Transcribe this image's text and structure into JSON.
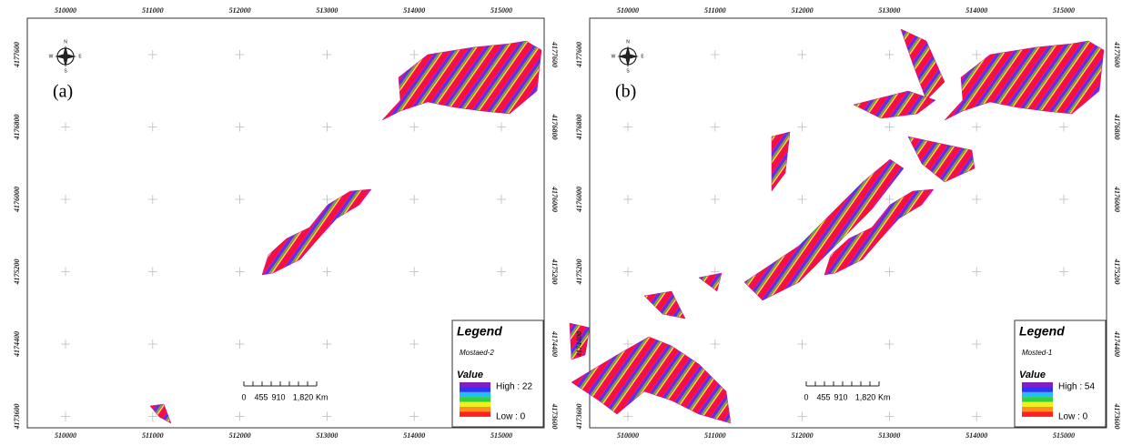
{
  "panels": [
    {
      "label": "(a)",
      "x_labels": [
        "510000",
        "511000",
        "512000",
        "513000",
        "514000",
        "515000"
      ],
      "y_labels": [
        "4177600",
        "4176800",
        "4176000",
        "4175200",
        "4174400",
        "4173600"
      ],
      "compass": [
        "N",
        "E",
        "S",
        "W"
      ],
      "legend": {
        "title": "Legend",
        "layer": "Mostaed-2",
        "value_title": "Value",
        "high": "High : 22",
        "low": "Low : 0"
      },
      "scale": {
        "labels": [
          "0",
          "455",
          "910",
          "1,820"
        ],
        "unit": "Km"
      }
    },
    {
      "label": "(b)",
      "x_labels": [
        "510000",
        "511000",
        "512000",
        "513000",
        "514000",
        "515000"
      ],
      "y_labels": [
        "4177600",
        "4176800",
        "4176000",
        "4175200",
        "4174400",
        "4173600"
      ],
      "compass": [
        "N",
        "E",
        "S",
        "W"
      ],
      "legend": {
        "title": "Legend",
        "layer": "Mosted-1",
        "value_title": "Value",
        "high": "High : 54",
        "low": "Low : 0"
      },
      "scale": {
        "labels": [
          "0",
          "455",
          "910",
          "1,820"
        ],
        "unit": "Km"
      }
    }
  ]
}
